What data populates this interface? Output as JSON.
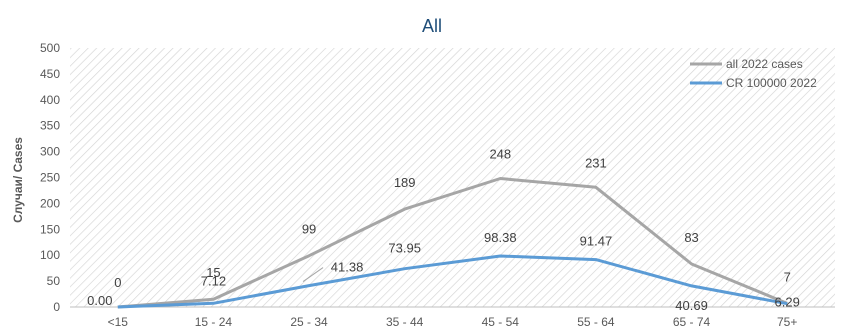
{
  "chart_data": {
    "type": "line",
    "title": "All",
    "ylabel": "Случаи/ Cases",
    "xlabel": "",
    "ylim": [
      0,
      500
    ],
    "yticks": [
      0,
      50,
      100,
      150,
      200,
      250,
      300,
      350,
      400,
      450,
      500
    ],
    "categories": [
      "<15",
      "15 - 24",
      "25 - 34",
      "35 - 44",
      "45 - 54",
      "55 - 64",
      "65 - 74",
      "75+"
    ],
    "grid": false,
    "background": "hatched",
    "legend_position": "top-right",
    "series": [
      {
        "name": "all 2022 cases",
        "color": "#a6a6a6",
        "values": [
          0,
          15,
          99,
          189,
          248,
          231,
          83,
          7
        ],
        "labels": [
          "0",
          "15",
          "99",
          "189",
          "248",
          "231",
          "83",
          "7"
        ]
      },
      {
        "name": "CR 100000 2022",
        "color": "#5b9bd5",
        "values": [
          0.0,
          7.12,
          41.38,
          73.95,
          98.38,
          91.47,
          40.69,
          6.29
        ],
        "labels": [
          "0.00",
          "7.12",
          "41.38",
          "73.95",
          "98.38",
          "91.47",
          "40.69",
          "6.29"
        ]
      }
    ]
  }
}
